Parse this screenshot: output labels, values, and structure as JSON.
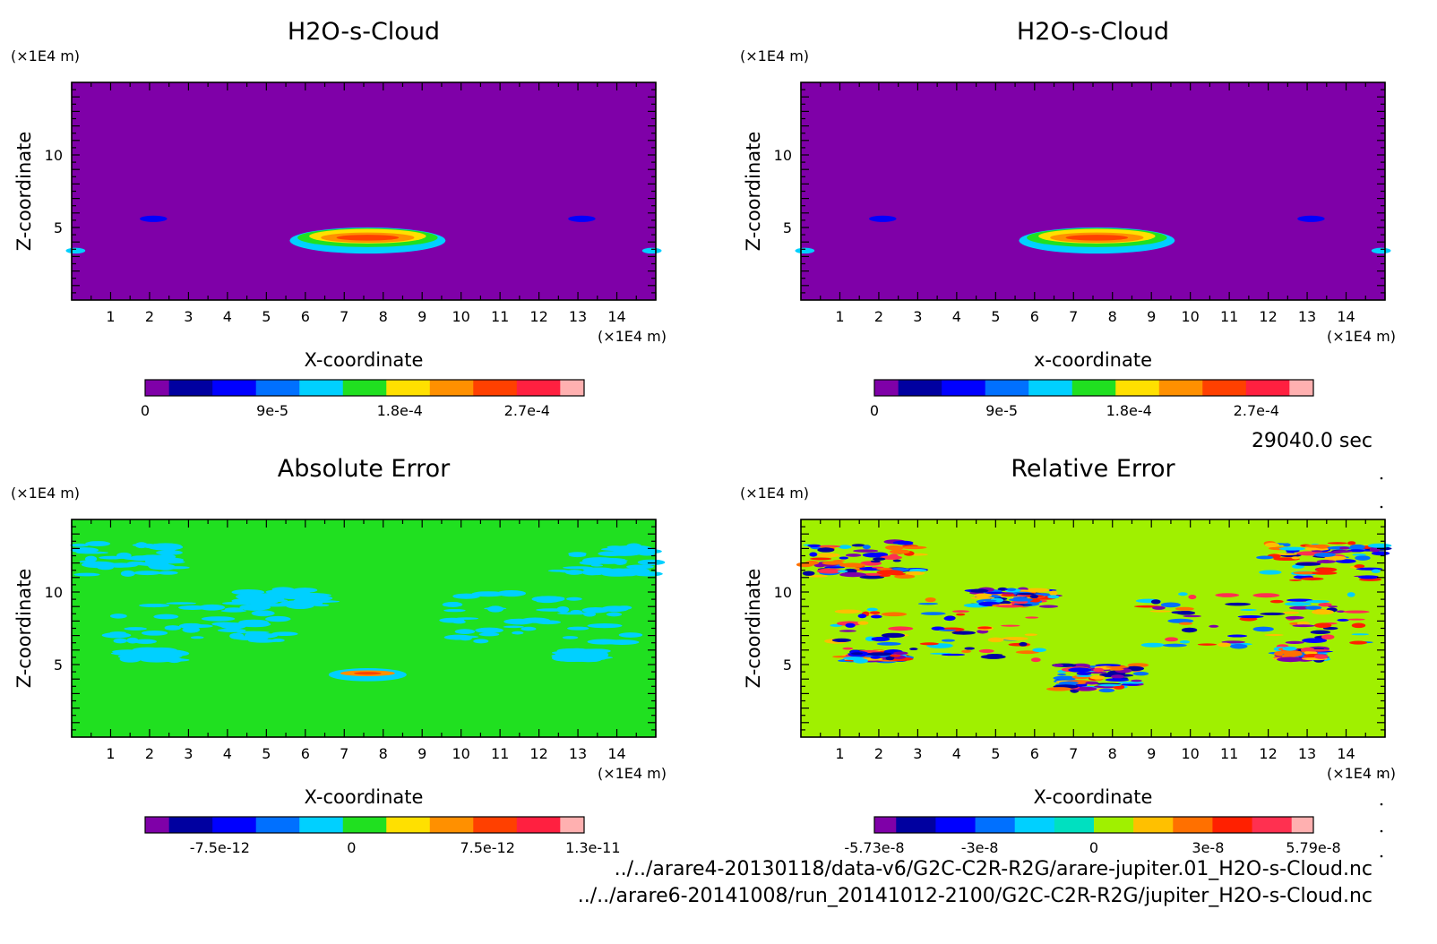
{
  "time_label": "29040.0 sec",
  "files": [
    "../../arare4-20130118/data-v6/G2C-C2R-R2G/arare-jupiter.01_H2O-s-Cloud.nc",
    "../../arare6-20141008/run_20141012-2100/G2C-C2R-R2G/jupiter_H2O-s-Cloud.nc"
  ],
  "chart_data": [
    {
      "type": "heatmap",
      "title": "H2O-s-Cloud",
      "xlabel": "X-coordinate",
      "ylabel": "Z-coordinate",
      "x_unit": "(×1E4 m)",
      "y_unit": "(×1E4 m)",
      "xlim": [
        0,
        15
      ],
      "ylim": [
        0,
        15
      ],
      "x_ticks": [
        "1",
        "2",
        "3",
        "4",
        "5",
        "6",
        "7",
        "8",
        "9",
        "10",
        "11",
        "12",
        "13",
        "14"
      ],
      "y_ticks": [
        "5",
        "10"
      ],
      "background_color": "#7f00a8",
      "colorbar": {
        "colors": [
          "#7f00a8",
          "#0000a0",
          "#0000ff",
          "#0070ff",
          "#00d0ff",
          "#20e020",
          "#ffe000",
          "#ff9000",
          "#ff4000",
          "#ff2040",
          "#ffb0b0"
        ],
        "tick_labels": [
          "0",
          "9e-5",
          "1.8e-4",
          "2.7e-4"
        ]
      }
    },
    {
      "type": "heatmap",
      "title": "H2O-s-Cloud",
      "xlabel": "x-coordinate",
      "ylabel": "Z-coordinate",
      "x_unit": "(×1E4 m)",
      "y_unit": "(×1E4 m)",
      "xlim": [
        0,
        15
      ],
      "ylim": [
        0,
        15
      ],
      "x_ticks": [
        "1",
        "2",
        "3",
        "4",
        "5",
        "6",
        "7",
        "8",
        "9",
        "10",
        "11",
        "12",
        "13",
        "14"
      ],
      "y_ticks": [
        "5",
        "10"
      ],
      "background_color": "#7f00a8",
      "colorbar": {
        "colors": [
          "#7f00a8",
          "#0000a0",
          "#0000ff",
          "#0070ff",
          "#00d0ff",
          "#20e020",
          "#ffe000",
          "#ff9000",
          "#ff4000",
          "#ff2040",
          "#ffb0b0"
        ],
        "tick_labels": [
          "0",
          "9e-5",
          "1.8e-4",
          "2.7e-4"
        ]
      }
    },
    {
      "type": "heatmap",
      "title": "Absolute Error",
      "xlabel": "X-coordinate",
      "ylabel": "Z-coordinate",
      "x_unit": "(×1E4 m)",
      "y_unit": "(×1E4 m)",
      "xlim": [
        0,
        15
      ],
      "ylim": [
        0,
        15
      ],
      "x_ticks": [
        "1",
        "2",
        "3",
        "4",
        "5",
        "6",
        "7",
        "8",
        "9",
        "10",
        "11",
        "12",
        "13",
        "14"
      ],
      "y_ticks": [
        "5",
        "10"
      ],
      "background_color": "#20e020",
      "colorbar": {
        "colors": [
          "#7f00a8",
          "#0000a0",
          "#0000ff",
          "#0070ff",
          "#00d0ff",
          "#20e020",
          "#ffe000",
          "#ff9000",
          "#ff4000",
          "#ff2040",
          "#ffb0b0"
        ],
        "tick_labels": [
          "-7.5e-12",
          "0",
          "7.5e-12",
          "1.3e-11"
        ]
      }
    },
    {
      "type": "heatmap",
      "title": "Relative Error",
      "xlabel": "X-coordinate",
      "ylabel": "Z-coordinate",
      "x_unit": "(×1E4 m)",
      "y_unit": "(×1E4 m)",
      "xlim": [
        0,
        15
      ],
      "ylim": [
        0,
        15
      ],
      "x_ticks": [
        "1",
        "2",
        "3",
        "4",
        "5",
        "6",
        "7",
        "8",
        "9",
        "10",
        "11",
        "12",
        "13",
        "14"
      ],
      "y_ticks": [
        "5",
        "10"
      ],
      "background_color": "#a0f000",
      "colorbar": {
        "colors": [
          "#7f00a8",
          "#0000a0",
          "#0000ff",
          "#0070ff",
          "#00d0ff",
          "#00e0c0",
          "#a0f000",
          "#ffc000",
          "#ff7000",
          "#ff2000",
          "#ff3050",
          "#ffb0b0"
        ],
        "tick_labels": [
          "-5.73e-8",
          "-3e-8",
          "0",
          "3e-8",
          "5.79e-8"
        ]
      }
    }
  ]
}
